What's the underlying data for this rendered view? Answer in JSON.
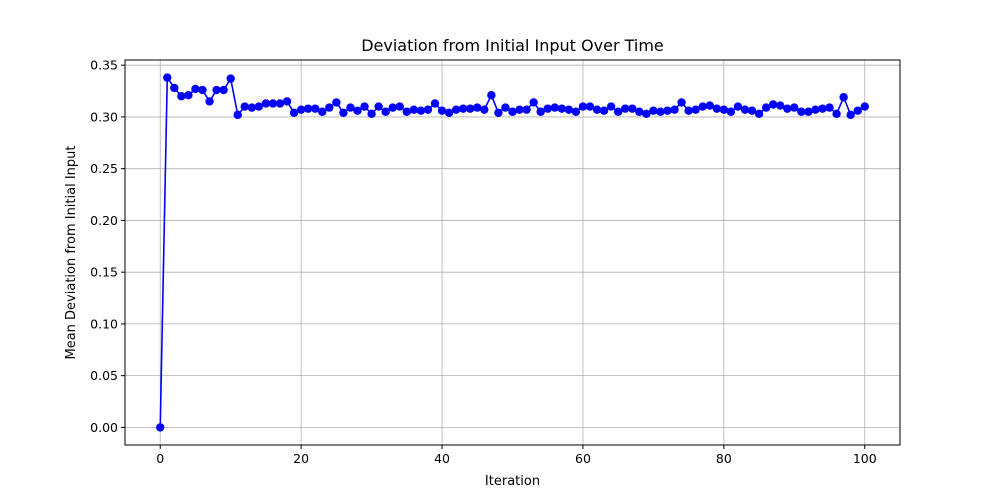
{
  "chart_data": {
    "type": "line",
    "title": "Deviation from Initial Input Over Time",
    "xlabel": "Iteration",
    "ylabel": "Mean Deviation from Initial Input",
    "xlim": [
      -5,
      105
    ],
    "ylim": [
      -0.017,
      0.355
    ],
    "xticks": [
      0,
      20,
      40,
      60,
      80,
      100
    ],
    "xtick_labels": [
      "0",
      "20",
      "40",
      "60",
      "80",
      "100"
    ],
    "yticks": [
      0.0,
      0.05,
      0.1,
      0.15,
      0.2,
      0.25,
      0.3,
      0.35
    ],
    "ytick_labels": [
      "0.00",
      "0.05",
      "0.10",
      "0.15",
      "0.20",
      "0.25",
      "0.30",
      "0.35"
    ],
    "grid": true,
    "series": [
      {
        "color": "#0000ff",
        "marker": "circle",
        "x": [
          0,
          1,
          2,
          3,
          4,
          5,
          6,
          7,
          8,
          9,
          10,
          11,
          12,
          13,
          14,
          15,
          16,
          17,
          18,
          19,
          20,
          21,
          22,
          23,
          24,
          25,
          26,
          27,
          28,
          29,
          30,
          31,
          32,
          33,
          34,
          35,
          36,
          37,
          38,
          39,
          40,
          41,
          42,
          43,
          44,
          45,
          46,
          47,
          48,
          49,
          50,
          51,
          52,
          53,
          54,
          55,
          56,
          57,
          58,
          59,
          60,
          61,
          62,
          63,
          64,
          65,
          66,
          67,
          68,
          69,
          70,
          71,
          72,
          73,
          74,
          75,
          76,
          77,
          78,
          79,
          80,
          81,
          82,
          83,
          84,
          85,
          86,
          87,
          88,
          89,
          90,
          91,
          92,
          93,
          94,
          95,
          96,
          97,
          98,
          99,
          100
        ],
        "values": [
          0.0,
          0.338,
          0.328,
          0.32,
          0.321,
          0.327,
          0.326,
          0.315,
          0.326,
          0.326,
          0.337,
          0.302,
          0.31,
          0.309,
          0.31,
          0.313,
          0.313,
          0.313,
          0.315,
          0.304,
          0.307,
          0.308,
          0.308,
          0.305,
          0.309,
          0.314,
          0.304,
          0.309,
          0.306,
          0.31,
          0.303,
          0.31,
          0.305,
          0.309,
          0.31,
          0.305,
          0.307,
          0.306,
          0.307,
          0.313,
          0.306,
          0.304,
          0.307,
          0.308,
          0.308,
          0.309,
          0.307,
          0.321,
          0.304,
          0.309,
          0.305,
          0.307,
          0.307,
          0.314,
          0.305,
          0.308,
          0.309,
          0.308,
          0.307,
          0.305,
          0.31,
          0.31,
          0.307,
          0.306,
          0.31,
          0.305,
          0.308,
          0.308,
          0.305,
          0.303,
          0.306,
          0.305,
          0.306,
          0.307,
          0.314,
          0.306,
          0.307,
          0.31,
          0.311,
          0.308,
          0.307,
          0.305,
          0.31,
          0.307,
          0.306,
          0.303,
          0.309,
          0.312,
          0.311,
          0.308,
          0.309,
          0.305,
          0.305,
          0.307,
          0.308,
          0.309,
          0.303,
          0.319,
          0.302,
          0.306,
          0.31
        ]
      }
    ]
  }
}
